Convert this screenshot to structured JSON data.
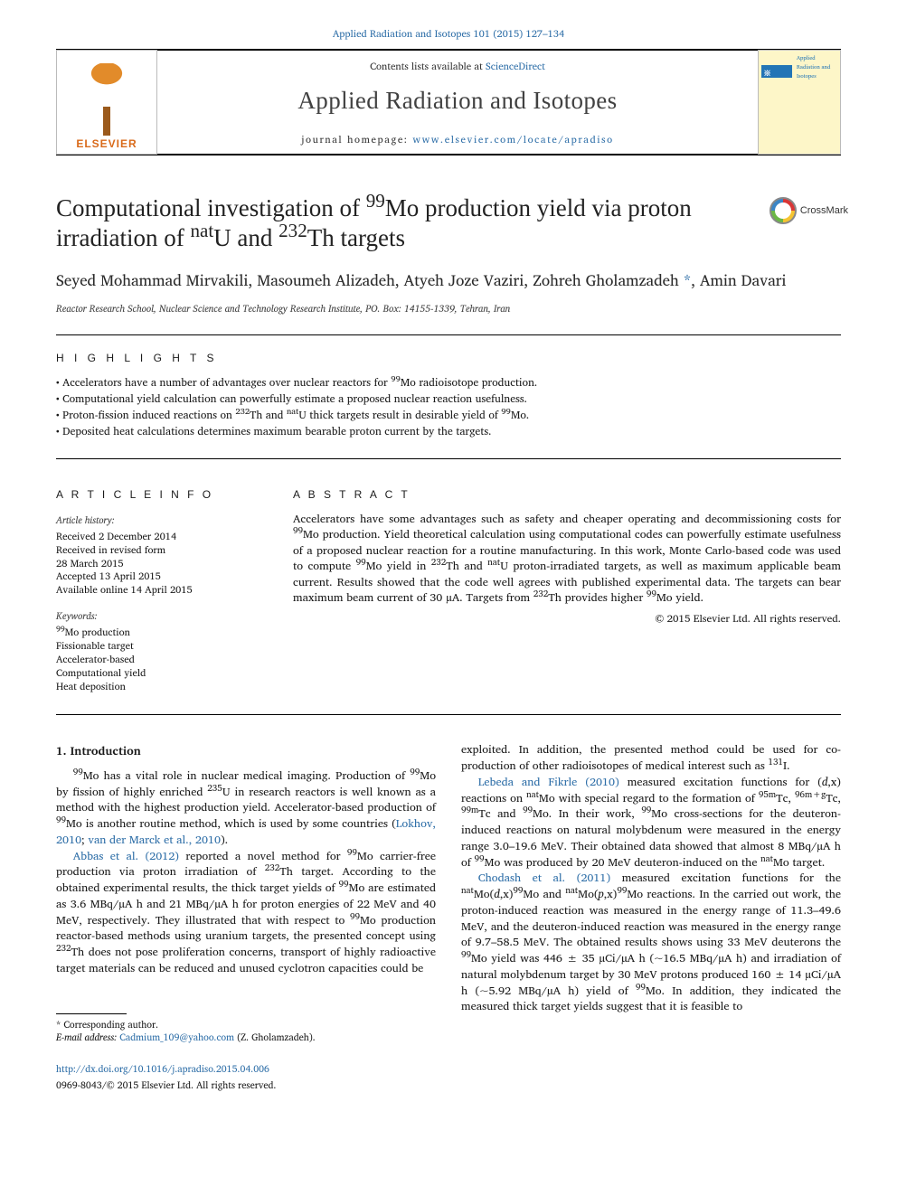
{
  "header": {
    "citation_link": "Applied Radiation and Isotopes 101 (2015) 127–134",
    "contents_line_prefix": "Contents lists available at ",
    "contents_link": "ScienceDirect",
    "journal_name": "Applied Radiation and Isotopes",
    "homepage_prefix": "journal homepage: ",
    "homepage_link": "www.elsevier.com/locate/apradiso",
    "elsevier_word": "ELSEVIER",
    "cover_mini_title": "Applied Radiation and Isotopes"
  },
  "crossmark": {
    "label": "CrossMark"
  },
  "article": {
    "title_html": "Computational investigation of <sup>99</sup>Mo production yield via proton irradiation of <sup>nat</sup>U and <sup>232</sup>Th targets",
    "authors_html": "Seyed Mohammad Mirvakili, Masoumeh Alizadeh, Atyeh Joze Vaziri, Zohreh Gholamzadeh <span class=\"corr-asterisk\">*</span>, Amin Davari",
    "affiliation": "Reactor Research School, Nuclear Science and Technology Research Institute, PO. Box: 14155-1339, Tehran, Iran"
  },
  "highlights": {
    "label": "H I G H L I G H T S",
    "items_html": [
      "Accelerators have a number of advantages over nuclear reactors for <sup>99</sup>Mo radioisotope production.",
      "Computational yield calculation can powerfully estimate a proposed nuclear reaction usefulness.",
      "Proton-fission induced reactions on <sup>232</sup>Th and <sup>nat</sup>U thick targets result in desirable yield of <sup>99</sup>Mo.",
      "Deposited heat calculations determines maximum bearable proton current by the targets."
    ]
  },
  "article_info": {
    "label": "A R T I C L E  I N F O",
    "history_hdr": "Article history:",
    "history": [
      "Received 2 December 2014",
      "Received in revised form",
      "28 March 2015",
      "Accepted 13 April 2015",
      "Available online 14 April 2015"
    ],
    "keywords_hdr": "Keywords:",
    "keywords_html": [
      "<sup>99</sup>Mo production",
      "Fissionable target",
      "Accelerator-based",
      "Computational yield",
      "Heat deposition"
    ]
  },
  "abstract": {
    "label": "A B S T R A C T",
    "text_html": "Accelerators have some advantages such as safety and cheaper operating and decommissioning costs for <sup>99</sup>Mo production. Yield theoretical calculation using computational codes can powerfully estimate usefulness of a proposed nuclear reaction for a routine manufacturing. In this work, Monte Carlo-based code was used to compute <sup>99</sup>Mo yield in <sup>232</sup>Th and <sup>nat</sup>U proton-irradiated targets, as well as maximum applicable beam current. Results showed that the code well agrees with published experimental data. The targets can bear maximum beam current of 30 µA. Targets from <sup>232</sup>Th provides higher <sup>99</sup>Mo yield.",
    "copyright": "© 2015 Elsevier Ltd. All rights reserved."
  },
  "body": {
    "intro_heading": "1.  Introduction",
    "para1_html": "<sup>99</sup>Mo has a vital role in nuclear medical imaging. Production of <sup>99</sup>Mo by fission of highly enriched <sup>235</sup>U in research reactors is well known as a method with the highest production yield. Accelerator-based production of <sup>99</sup>Mo is another routine method, which is used by some countries (<a class=\"plink\" href=\"#\">Lokhov, 2010</a>; <a class=\"plink\" href=\"#\">van der Marck et al., 2010</a>).",
    "para2_html": "<a class=\"plink\" href=\"#\">Abbas et al. (2012)</a> reported a novel method for <sup>99</sup>Mo carrier-free production via proton irradiation of <sup>232</sup>Th target. According to the obtained experimental results, the thick target yields of <sup>99</sup>Mo are estimated as 3.6 MBq/µA h and 21 MBq/µA h for proton energies of 22 MeV and 40 MeV, respectively. They illustrated that with respect to <sup>99</sup>Mo production reactor-based methods using uranium targets, the presented concept using <sup>232</sup>Th does not pose proliferation concerns, transport of highly radioactive target materials can be reduced and unused cyclotron capacities could be",
    "para3_html": "exploited. In addition, the presented method could be used for co-production of other radioisotopes of medical interest such as <sup>131</sup>I.",
    "para4_html": "<a class=\"plink\" href=\"#\">Lebeda and Fikrle (2010)</a> measured excitation functions for (<i>d</i>,x) reactions on <sup>nat</sup>Mo with special regard to the formation of <sup>95m</sup>Tc, <sup>96m+g</sup>Tc, <sup>99m</sup>Tc and <sup>99</sup>Mo. In their work, <sup>99</sup>Mo cross-sections for the deuteron-induced reactions on natural molybdenum were measured in the energy range 3.0–19.6 MeV. Their obtained data showed that almost 8 MBq/µA h of <sup>99</sup>Mo was produced by 20 MeV deuteron-induced on the <sup>nat</sup>Mo target.",
    "para5_html": "<a class=\"plink\" href=\"#\">Chodash et al. (2011)</a> measured excitation functions for the <sup>nat</sup>Mo(<i>d</i>,x)<sup>99</sup>Mo and <sup>nat</sup>Mo(<i>p</i>,x)<sup>99</sup>Mo reactions. In the carried out work, the proton-induced reaction was measured in the energy range of 11.3–49.6 MeV, and the deuteron-induced reaction was measured in the energy range of 9.7–58.5 MeV. The obtained results shows using 33 MeV deuterons the <sup>99</sup>Mo yield was 446 ± 35 µCi/µA h (~16.5 MBq/µA h) and irradiation of natural molybdenum target by 30 MeV protons produced 160 ± 14 µCi/µA h (~5.92 MBq/µA h) yield of <sup>99</sup>Mo. In addition, they indicated the measured thick target yields suggest that it is feasible to"
  },
  "corr": {
    "line1": "* Corresponding author.",
    "line2_prefix": "E-mail address: ",
    "email": "Cadmium_109@yahoo.com",
    "line2_suffix": " (Z. Gholamzadeh)."
  },
  "footer": {
    "doi": "http://dx.doi.org/10.1016/j.apradiso.2015.04.006",
    "issn_line": "0969-8043/© 2015 Elsevier Ltd. All rights reserved."
  },
  "colors": {
    "link": "#2f6fa8",
    "text": "#1a1a1a",
    "elsevier_orange": "#d96a1a",
    "cover_bg": "#fdf6c8"
  }
}
